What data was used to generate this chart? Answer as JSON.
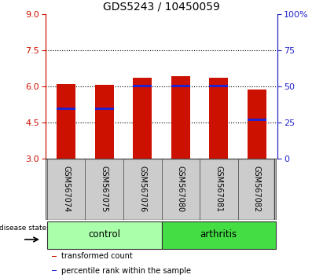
{
  "title": "GDS5243 / 10450059",
  "samples": [
    "GSM567074",
    "GSM567075",
    "GSM567076",
    "GSM567080",
    "GSM567081",
    "GSM567082"
  ],
  "bar_bottom": 3.0,
  "bar_tops": [
    6.1,
    6.05,
    6.35,
    6.4,
    6.35,
    5.85
  ],
  "blue_positions": [
    5.0,
    5.0,
    5.95,
    5.95,
    5.95,
    4.55
  ],
  "blue_heights": [
    0.12,
    0.12,
    0.12,
    0.12,
    0.12,
    0.12
  ],
  "bar_color": "#cc1100",
  "blue_color": "#2222cc",
  "ylim_left": [
    3,
    9
  ],
  "ylim_right": [
    0,
    100
  ],
  "yticks_left": [
    3,
    4.5,
    6,
    7.5,
    9
  ],
  "yticks_right": [
    0,
    25,
    50,
    75,
    100
  ],
  "ytick_labels_right": [
    "0",
    "25",
    "50",
    "75",
    "100%"
  ],
  "dotted_lines": [
    4.5,
    6.0,
    7.5
  ],
  "groups": [
    {
      "label": "control",
      "indices": [
        0,
        1,
        2
      ],
      "color": "#aaffaa"
    },
    {
      "label": "arthritis",
      "indices": [
        3,
        4,
        5
      ],
      "color": "#44dd44"
    }
  ],
  "legend_items": [
    {
      "label": "transformed count",
      "color": "#cc1100"
    },
    {
      "label": "percentile rank within the sample",
      "color": "#2222cc"
    }
  ],
  "bar_width": 0.5,
  "label_area_color": "#cccccc",
  "background_color": "#ffffff"
}
